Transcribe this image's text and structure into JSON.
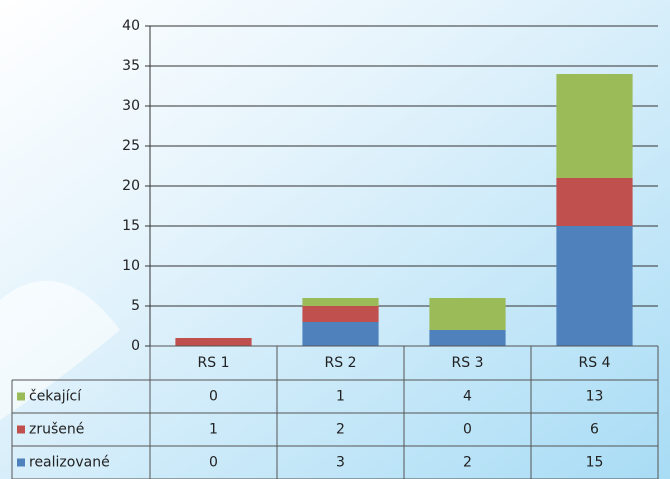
{
  "chart_data": {
    "type": "bar",
    "stacked": true,
    "categories": [
      "RS 1",
      "RS 2",
      "RS 3",
      "RS 4"
    ],
    "series": [
      {
        "name": "čekající",
        "color": "#9bbb59",
        "values": [
          0,
          1,
          4,
          13
        ]
      },
      {
        "name": "zrušené",
        "color": "#c0504d",
        "values": [
          1,
          2,
          0,
          6
        ]
      },
      {
        "name": "realizované",
        "color": "#4f81bd",
        "values": [
          0,
          3,
          2,
          15
        ]
      }
    ],
    "ylim": [
      0,
      40
    ],
    "yticks": [
      0,
      5,
      10,
      15,
      20,
      25,
      30,
      35,
      40
    ],
    "grid": true,
    "data_table": true
  }
}
